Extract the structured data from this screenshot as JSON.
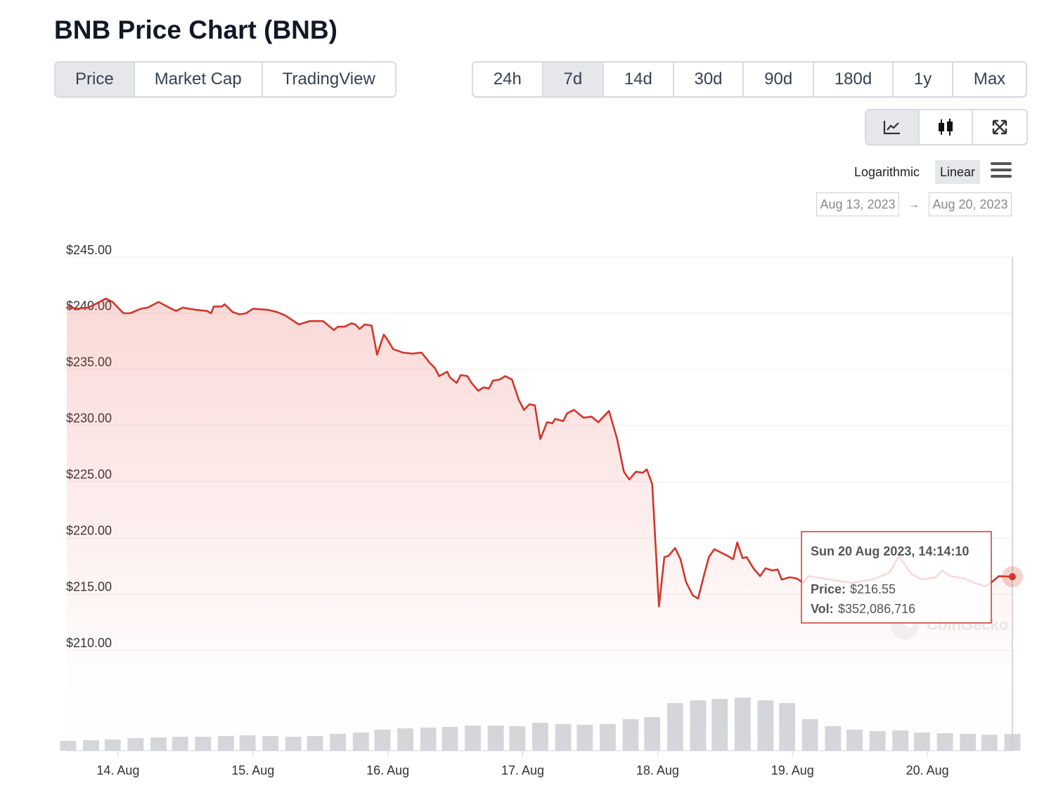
{
  "header": {
    "title": "BNB Price Chart (BNB)"
  },
  "tabs": [
    {
      "label": "Price",
      "selected": true
    },
    {
      "label": "Market Cap",
      "selected": false
    },
    {
      "label": "TradingView",
      "selected": false
    }
  ],
  "ranges": [
    {
      "label": "24h",
      "selected": false
    },
    {
      "label": "7d",
      "selected": true
    },
    {
      "label": "14d",
      "selected": false
    },
    {
      "label": "30d",
      "selected": false
    },
    {
      "label": "90d",
      "selected": false
    },
    {
      "label": "180d",
      "selected": false
    },
    {
      "label": "1y",
      "selected": false
    },
    {
      "label": "Max",
      "selected": false
    }
  ],
  "scale_options": [
    {
      "label": "Logarithmic",
      "selected": false
    },
    {
      "label": "Linear",
      "selected": true
    }
  ],
  "date_range": {
    "from": "Aug 13, 2023",
    "arrow": "→",
    "to": "Aug 20, 2023"
  },
  "chart_data": {
    "type": "line",
    "series": [
      {
        "color": "#d1362b",
        "x": [
          13.62,
          13.7,
          13.78,
          13.83,
          13.91,
          13.96,
          14.04,
          14.09,
          14.17,
          14.22,
          14.3,
          14.38,
          14.43,
          14.48,
          14.53,
          14.58,
          14.66,
          14.69,
          14.71,
          14.77,
          14.79,
          14.85,
          14.9,
          14.95,
          15.0,
          15.11,
          15.18,
          15.24,
          15.29,
          15.34,
          15.42,
          15.52,
          15.6,
          15.63,
          15.68,
          15.73,
          15.76,
          15.79,
          15.83,
          15.88,
          15.92,
          15.97,
          16.0,
          16.04,
          16.11,
          16.18,
          16.25,
          16.31,
          16.35,
          16.38,
          16.44,
          16.46,
          16.51,
          16.54,
          16.59,
          16.62,
          16.67,
          16.71,
          16.75,
          16.78,
          16.83,
          16.87,
          16.92,
          16.97,
          17.01,
          17.05,
          17.09,
          17.13,
          17.18,
          17.22,
          17.24,
          17.3,
          17.33,
          17.38,
          17.41,
          17.45,
          17.51,
          17.56,
          17.6,
          17.64,
          17.7,
          17.75,
          17.79,
          17.84,
          17.89,
          17.92,
          17.96,
          18.01,
          18.05,
          18.08,
          18.13,
          18.17,
          18.21,
          18.26,
          18.3,
          18.34,
          18.38,
          18.42,
          18.47,
          18.52,
          18.56,
          18.59,
          18.63,
          18.66,
          18.71,
          18.76,
          18.8,
          18.85,
          18.89,
          18.92,
          18.98,
          19.03,
          19.08,
          19.12,
          19.28,
          19.44,
          19.59,
          19.72,
          19.79,
          19.88,
          19.96,
          20.06,
          20.11,
          20.17,
          20.27,
          20.35,
          20.43,
          20.48,
          20.53,
          20.63
        ],
        "values": [
          240.6,
          240.4,
          240.5,
          240.8,
          241.3,
          241.0,
          240.0,
          240.0,
          240.4,
          240.5,
          241.0,
          240.5,
          240.2,
          240.5,
          240.4,
          240.3,
          240.2,
          240.0,
          240.6,
          240.6,
          240.8,
          240.1,
          239.9,
          240.0,
          240.4,
          240.3,
          240.1,
          239.8,
          239.4,
          239.0,
          239.3,
          239.3,
          238.5,
          238.8,
          238.8,
          239.1,
          239.0,
          238.6,
          239.0,
          238.9,
          236.3,
          238.1,
          237.6,
          236.8,
          236.5,
          236.4,
          236.5,
          235.6,
          235.1,
          234.4,
          234.8,
          234.3,
          233.8,
          234.5,
          234.4,
          233.8,
          233.1,
          233.4,
          233.3,
          234.0,
          234.1,
          234.4,
          234.1,
          232.3,
          231.4,
          231.9,
          231.8,
          228.8,
          230.3,
          230.2,
          230.6,
          230.4,
          231.1,
          231.4,
          231.1,
          230.7,
          230.8,
          230.3,
          230.8,
          231.3,
          228.8,
          225.9,
          225.2,
          225.9,
          225.8,
          226.1,
          224.8,
          213.9,
          218.3,
          218.4,
          219.1,
          218.1,
          216.1,
          214.9,
          214.6,
          216.5,
          218.3,
          219.0,
          218.7,
          218.4,
          218.1,
          219.6,
          218.2,
          218.3,
          217.3,
          216.6,
          217.3,
          217.1,
          217.2,
          216.3,
          216.5,
          216.4,
          216.0,
          216.6,
          216.3,
          216.0,
          216.3,
          216.9,
          218.4,
          216.8,
          216.3,
          216.5,
          217.1,
          216.6,
          216.4,
          216.0,
          215.7,
          216.1,
          216.6,
          216.55
        ]
      }
    ],
    "volume": {
      "color": "#d4d6db",
      "x": [
        13.63,
        13.8,
        13.96,
        14.13,
        14.3,
        14.46,
        14.63,
        14.8,
        14.96,
        15.13,
        15.3,
        15.46,
        15.63,
        15.8,
        15.96,
        16.13,
        16.3,
        16.46,
        16.63,
        16.8,
        16.96,
        17.13,
        17.3,
        17.46,
        17.63,
        17.8,
        17.96,
        18.13,
        18.3,
        18.46,
        18.63,
        18.8,
        18.96,
        19.13,
        19.3,
        19.46,
        19.63,
        19.8,
        19.96,
        20.13,
        20.3,
        20.46,
        20.63
      ],
      "values": [
        206000000,
        220000000,
        235000000,
        265000000,
        280000000,
        294000000,
        294000000,
        309000000,
        323000000,
        309000000,
        294000000,
        309000000,
        353000000,
        382000000,
        441000000,
        470000000,
        485000000,
        500000000,
        529000000,
        529000000,
        515000000,
        588000000,
        559000000,
        544000000,
        559000000,
        662000000,
        706000000,
        1000000000,
        1058000000,
        1088000000,
        1117000000,
        1058000000,
        1000000000,
        662000000,
        515000000,
        441000000,
        412000000,
        426000000,
        382000000,
        368000000,
        353000000,
        338000000,
        352086716
      ],
      "vlim": [
        0,
        1180000000
      ]
    },
    "xlim": [
      13.62,
      20.63
    ],
    "ylim": [
      201.06,
      245
    ],
    "xticks": [
      {
        "value": 14,
        "label": "14. Aug"
      },
      {
        "value": 15,
        "label": "15. Aug"
      },
      {
        "value": 16,
        "label": "16. Aug"
      },
      {
        "value": 17,
        "label": "17. Aug"
      },
      {
        "value": 18,
        "label": "18. Aug"
      },
      {
        "value": 19,
        "label": "19. Aug"
      },
      {
        "value": 20,
        "label": "20. Aug"
      }
    ],
    "yticks": [
      {
        "value": 210,
        "label": "$210.00"
      },
      {
        "value": 215,
        "label": "$215.00"
      },
      {
        "value": 220,
        "label": "$220.00"
      },
      {
        "value": 225,
        "label": "$225.00"
      },
      {
        "value": 230,
        "label": "$230.00"
      },
      {
        "value": 235,
        "label": "$235.00"
      },
      {
        "value": 240,
        "label": "$240.00"
      },
      {
        "value": 245,
        "label": "$245.00"
      }
    ],
    "grid": true,
    "tooltip": {
      "title": "Sun 20 Aug 2023, 14:14:10",
      "price_label": "Price:",
      "price": "$216.55",
      "vol_label": "Vol:",
      "vol": "$352,086,716"
    },
    "watermark": "CoinGecko"
  }
}
